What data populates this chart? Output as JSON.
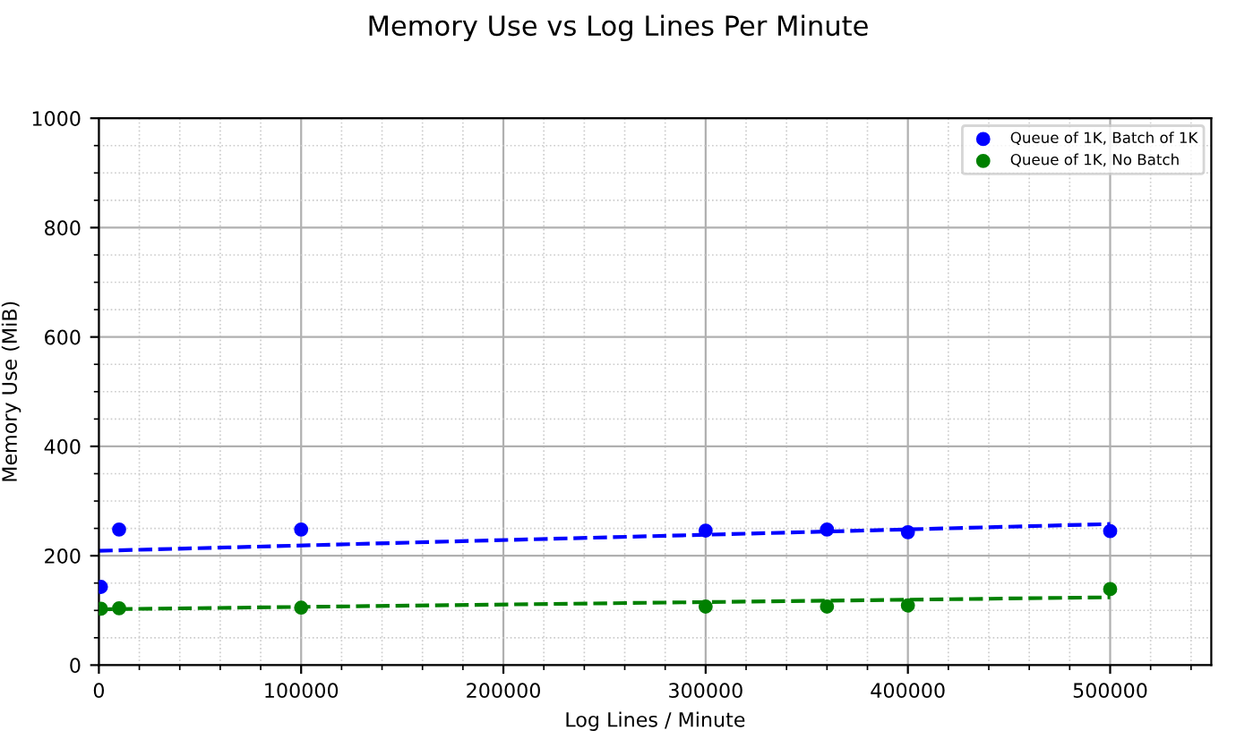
{
  "chart_data": {
    "type": "scatter",
    "title": "Memory Use vs Log Lines Per Minute",
    "xlabel": "Log Lines / Minute",
    "ylabel": "Memory Use (MiB)",
    "series": [
      {
        "name": "Queue of 1K, Batch of 1K",
        "color": "#0000ff",
        "x": [
          1000,
          10000,
          100000,
          300000,
          360000,
          400000,
          500000
        ],
        "values": [
          143,
          248,
          248,
          246,
          248,
          243,
          245
        ]
      },
      {
        "name": "Queue of 1K, No Batch",
        "color": "#008000",
        "x": [
          1000,
          10000,
          100000,
          300000,
          360000,
          400000,
          500000
        ],
        "values": [
          103,
          104,
          105,
          107,
          107,
          109,
          139
        ]
      },
      {
        "type": "line",
        "line_style": "dashed",
        "marker": "none",
        "color": "#0000ff",
        "x": [
          0,
          500000
        ],
        "values": [
          209,
          258
        ]
      },
      {
        "type": "line",
        "line_style": "dashed",
        "marker": "none",
        "color": "#008000",
        "x": [
          0,
          500000
        ],
        "values": [
          102,
          124
        ]
      }
    ],
    "marker": "circle",
    "xlim": [
      0,
      550000
    ],
    "xticks": [
      0,
      100000,
      200000,
      300000,
      400000,
      500000
    ],
    "ylim": [
      0,
      1000
    ],
    "yticks": [
      0,
      200,
      400,
      600,
      800,
      1000
    ],
    "grid": true,
    "legend": "top right"
  }
}
